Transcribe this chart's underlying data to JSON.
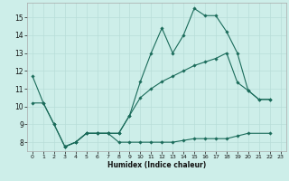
{
  "xlabel": "Humidex (Indice chaleur)",
  "bg_color": "#cdeee9",
  "grid_color": "#b8ddd8",
  "line_color": "#1a6b5a",
  "xlim": [
    -0.5,
    23.5
  ],
  "ylim": [
    7.5,
    15.8
  ],
  "xticks": [
    0,
    1,
    2,
    3,
    4,
    5,
    6,
    7,
    8,
    9,
    10,
    11,
    12,
    13,
    14,
    15,
    16,
    17,
    18,
    19,
    20,
    21,
    22,
    23
  ],
  "yticks": [
    8,
    9,
    10,
    11,
    12,
    13,
    14,
    15
  ],
  "line1_x": [
    0,
    1,
    2,
    3,
    4,
    5,
    6,
    7,
    8,
    9,
    10,
    11,
    12,
    13,
    14,
    15,
    16,
    17,
    18,
    19,
    20,
    21,
    22
  ],
  "line1_y": [
    11.7,
    10.2,
    9.0,
    7.75,
    8.0,
    8.5,
    8.5,
    8.5,
    8.5,
    9.5,
    11.4,
    13.0,
    14.4,
    13.0,
    14.0,
    15.5,
    15.1,
    15.1,
    14.2,
    13.0,
    10.9,
    10.4,
    10.4
  ],
  "line2_x": [
    0,
    1,
    2,
    3,
    4,
    5,
    6,
    7,
    8,
    9,
    10,
    11,
    12,
    13,
    14,
    15,
    16,
    17,
    18,
    19,
    20,
    21,
    22
  ],
  "line2_y": [
    10.2,
    10.2,
    9.0,
    7.75,
    8.0,
    8.5,
    8.5,
    8.5,
    8.5,
    9.5,
    10.5,
    11.0,
    11.4,
    11.7,
    12.0,
    12.3,
    12.5,
    12.7,
    13.0,
    11.35,
    10.9,
    10.4,
    10.4
  ],
  "line3_x": [
    3,
    4,
    5,
    6,
    7,
    8,
    9,
    10,
    11,
    12,
    13,
    14,
    15,
    16,
    17,
    18,
    19,
    20,
    22
  ],
  "line3_y": [
    7.75,
    8.0,
    8.5,
    8.5,
    8.5,
    8.0,
    8.0,
    8.0,
    8.0,
    8.0,
    8.0,
    8.1,
    8.2,
    8.2,
    8.2,
    8.2,
    8.35,
    8.5,
    8.5
  ]
}
